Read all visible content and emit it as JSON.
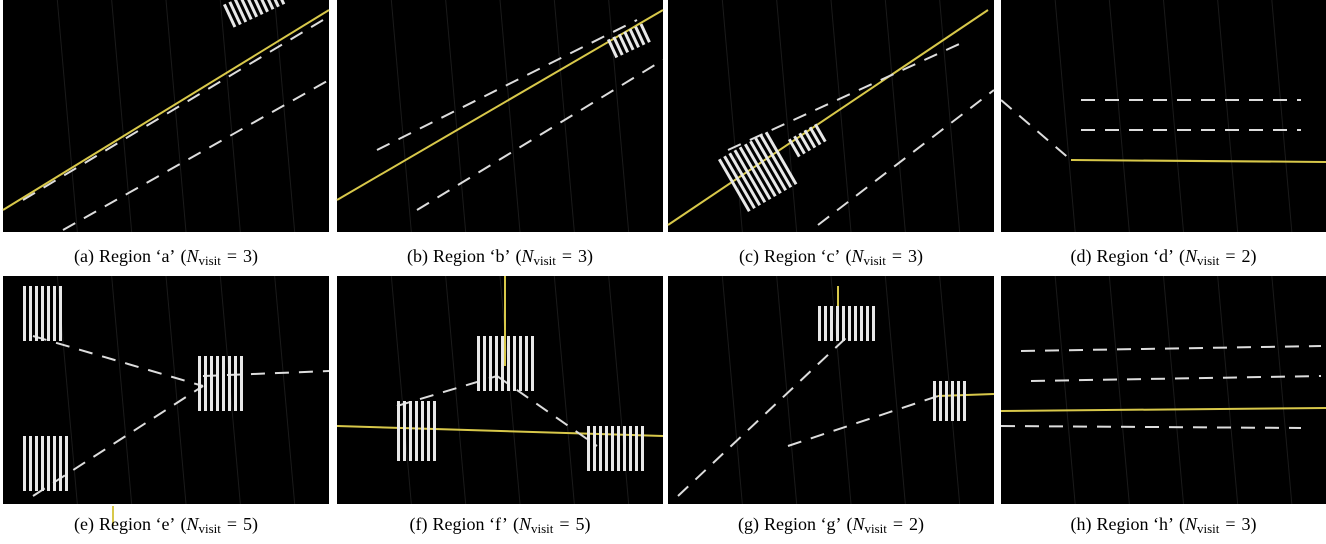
{
  "caption_format": {
    "open": "(",
    "var": "N",
    "sub": "visit",
    "eq": "=",
    "close": ")"
  },
  "panels": [
    {
      "label": "(a)",
      "region": "Region ‘a’",
      "n": 3
    },
    {
      "label": "(b)",
      "region": "Region ‘b’",
      "n": 3
    },
    {
      "label": "(c)",
      "region": "Region ‘c’",
      "n": 3
    },
    {
      "label": "(d)",
      "region": "Region ‘d’",
      "n": 2
    },
    {
      "label": "(e)",
      "region": "Region ‘e’",
      "n": 5
    },
    {
      "label": "(f)",
      "region": "Region ‘f’",
      "n": 5
    },
    {
      "label": "(g)",
      "region": "Region ‘g’",
      "n": 2
    },
    {
      "label": "(h)",
      "region": "Region ‘h’",
      "n": 3
    }
  ]
}
